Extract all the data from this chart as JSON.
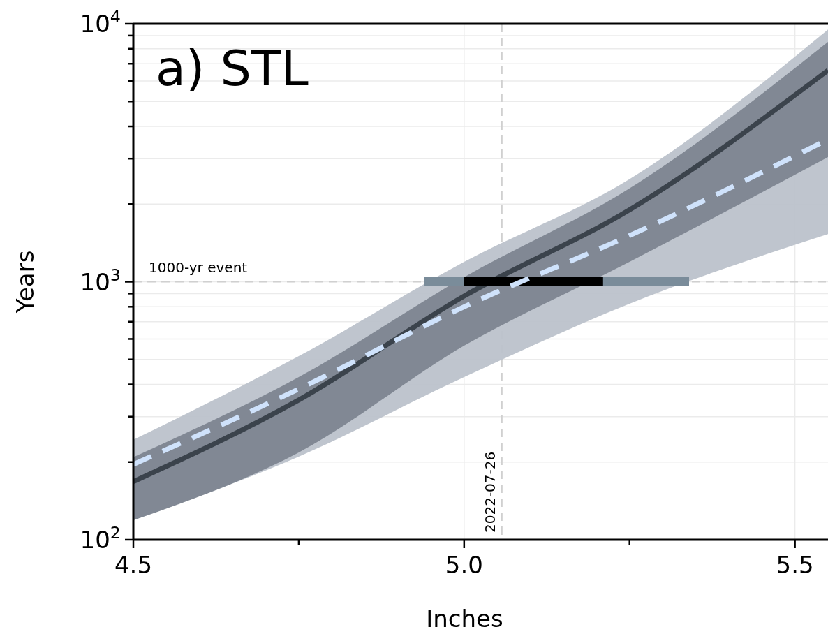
{
  "chart_data": {
    "type": "line",
    "title": "a) STL",
    "xlabel": "Inches",
    "ylabel": "Years",
    "log": "y",
    "grid": true,
    "line_style": "solid",
    "marker": "none",
    "xlim": [
      4.5,
      5.55
    ],
    "xticks": [
      4.5,
      {
        "value": 4.75,
        "label": null
      },
      {
        "value": 5.0,
        "label": "5.0"
      },
      {
        "value": 5.25,
        "label": null
      },
      5.5
    ],
    "ylim": [
      100,
      10000
    ],
    "yticks": [
      {
        "value": 100,
        "label": "10$^{2}$"
      },
      {
        "value": 200,
        "label": null
      },
      {
        "value": 300,
        "label": null
      },
      {
        "value": 400,
        "label": null
      },
      {
        "value": 500,
        "label": null
      },
      {
        "value": 600,
        "label": null
      },
      {
        "value": 700,
        "label": null
      },
      {
        "value": 800,
        "label": null
      },
      {
        "value": 900,
        "label": null
      },
      {
        "value": 1000,
        "label": "10$^{3}$"
      },
      {
        "value": 2000,
        "label": null
      },
      {
        "value": 3000,
        "label": null
      },
      {
        "value": 4000,
        "label": null
      },
      {
        "value": 5000,
        "label": null
      },
      {
        "value": 6000,
        "label": null
      },
      {
        "value": 7000,
        "label": null
      },
      {
        "value": 8000,
        "label": null
      },
      {
        "value": 9000,
        "label": null
      },
      {
        "value": 10000,
        "label": "10$^{4}$"
      }
    ],
    "series": [
      {
        "color": "#cfe2fb",
        "line_style": "dashed",
        "x": [
          4.5,
          4.75,
          5.0,
          5.25,
          5.55
        ],
        "values": [
          196,
          384,
          800,
          1510,
          3560
        ],
        "lower": [
          119,
          210,
          427,
          822,
          1530
        ],
        "upper": [
          244,
          515,
          1195,
          2500,
          9500
        ]
      },
      {
        "color": "#3b434c",
        "x": [
          4.5,
          4.75,
          5.0,
          5.25,
          5.55
        ],
        "values": [
          168,
          348,
          880,
          1900,
          6600
        ],
        "lower": [
          119,
          218,
          565,
          1195,
          3040
        ],
        "upper": [
          209,
          427,
          1042,
          2300,
          8500
        ]
      },
      {
        "color": "#7a8c9a",
        "x": [
          4.94,
          5.34
        ],
        "values": [
          1000,
          1000
        ]
      },
      {
        "color": "#000000",
        "x": [
          5.0,
          5.21
        ],
        "values": [
          1000,
          1000
        ]
      }
    ],
    "ref_lines": [
      {
        "axis": "y",
        "value": 1000,
        "label": "1000-yr event",
        "color": "#d0d0d0",
        "line_style": "dashed"
      },
      {
        "axis": "x",
        "value": 5.057,
        "color": "#d0d0d0",
        "line_style": "dashed"
      }
    ],
    "annotations": [
      {
        "text": "2022-07-26",
        "x": 5.057
      }
    ]
  }
}
